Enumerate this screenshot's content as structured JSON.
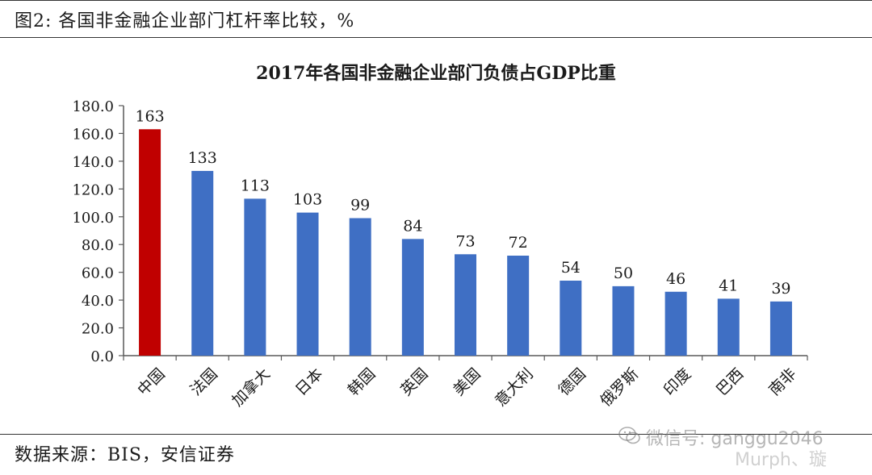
{
  "figure": {
    "caption": "图2: 各国非金融企业部门杠杆率比较，%",
    "source": "数据来源：BIS，安信证券"
  },
  "watermarks": {
    "wechat_text": "微信号: ganggu2046",
    "weibo_text": "Murph、璇"
  },
  "colors": {
    "highlight": "#c00000",
    "bar": "#3f6fc4",
    "axis": "#595959"
  },
  "chart_data": {
    "type": "bar",
    "title": "2017年各国非金融企业部门负债占GDP比重",
    "xlabel": "",
    "ylabel": "",
    "categories": [
      "中国",
      "法国",
      "加拿大",
      "日本",
      "韩国",
      "英国",
      "美国",
      "意大利",
      "德国",
      "俄罗斯",
      "印度",
      "巴西",
      "南非"
    ],
    "values": [
      163,
      133,
      113,
      103,
      99,
      84,
      73,
      72,
      54,
      50,
      46,
      41,
      39
    ],
    "data_labels": [
      "163",
      "133",
      "113",
      "103",
      "99",
      "84",
      "73",
      "72",
      "54",
      "50",
      "46",
      "41",
      "39"
    ],
    "highlight_category": "中国",
    "ylim": [
      0,
      180
    ],
    "yticks": [
      "0.0",
      "20.0",
      "40.0",
      "60.0",
      "80.0",
      "100.0",
      "120.0",
      "140.0",
      "160.0",
      "180.0"
    ],
    "grid": false,
    "legend": "none"
  }
}
